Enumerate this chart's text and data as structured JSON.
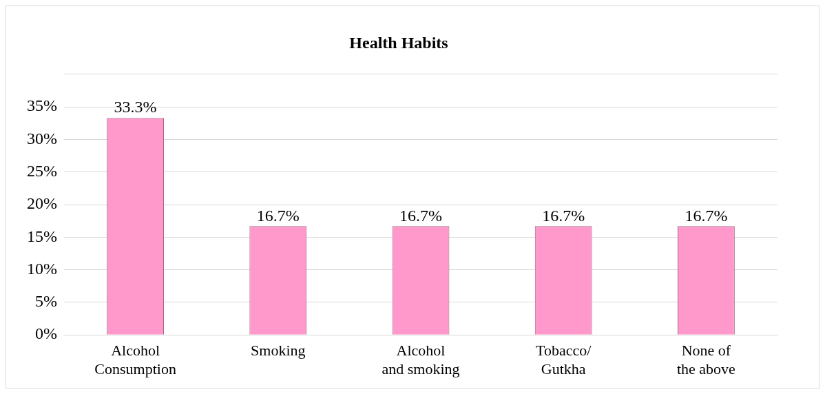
{
  "chart_data": {
    "type": "bar",
    "title": "Health Habits",
    "categories": [
      "Alcohol Consumption",
      "Smoking",
      "Alcohol and smoking",
      "Tobacco/ Gutkha",
      "None of the above"
    ],
    "values": [
      33.3,
      16.7,
      16.7,
      16.7,
      16.7
    ],
    "value_labels": [
      "33.3%",
      "16.7%",
      "16.7%",
      "16.7%",
      "16.7%"
    ],
    "color": "#ff99cc",
    "ylim": [
      0,
      40
    ],
    "yticks": [
      {
        "value": 0,
        "label": "0%"
      },
      {
        "value": 5,
        "label": "5%"
      },
      {
        "value": 10,
        "label": "10%"
      },
      {
        "value": 15,
        "label": "15%"
      },
      {
        "value": 20,
        "label": "20%"
      },
      {
        "value": 25,
        "label": "25%"
      },
      {
        "value": 30,
        "label": "30%"
      },
      {
        "value": 35,
        "label": "35%"
      },
      {
        "value": 40,
        "label": null
      }
    ],
    "grid": "y",
    "legend": false
  }
}
